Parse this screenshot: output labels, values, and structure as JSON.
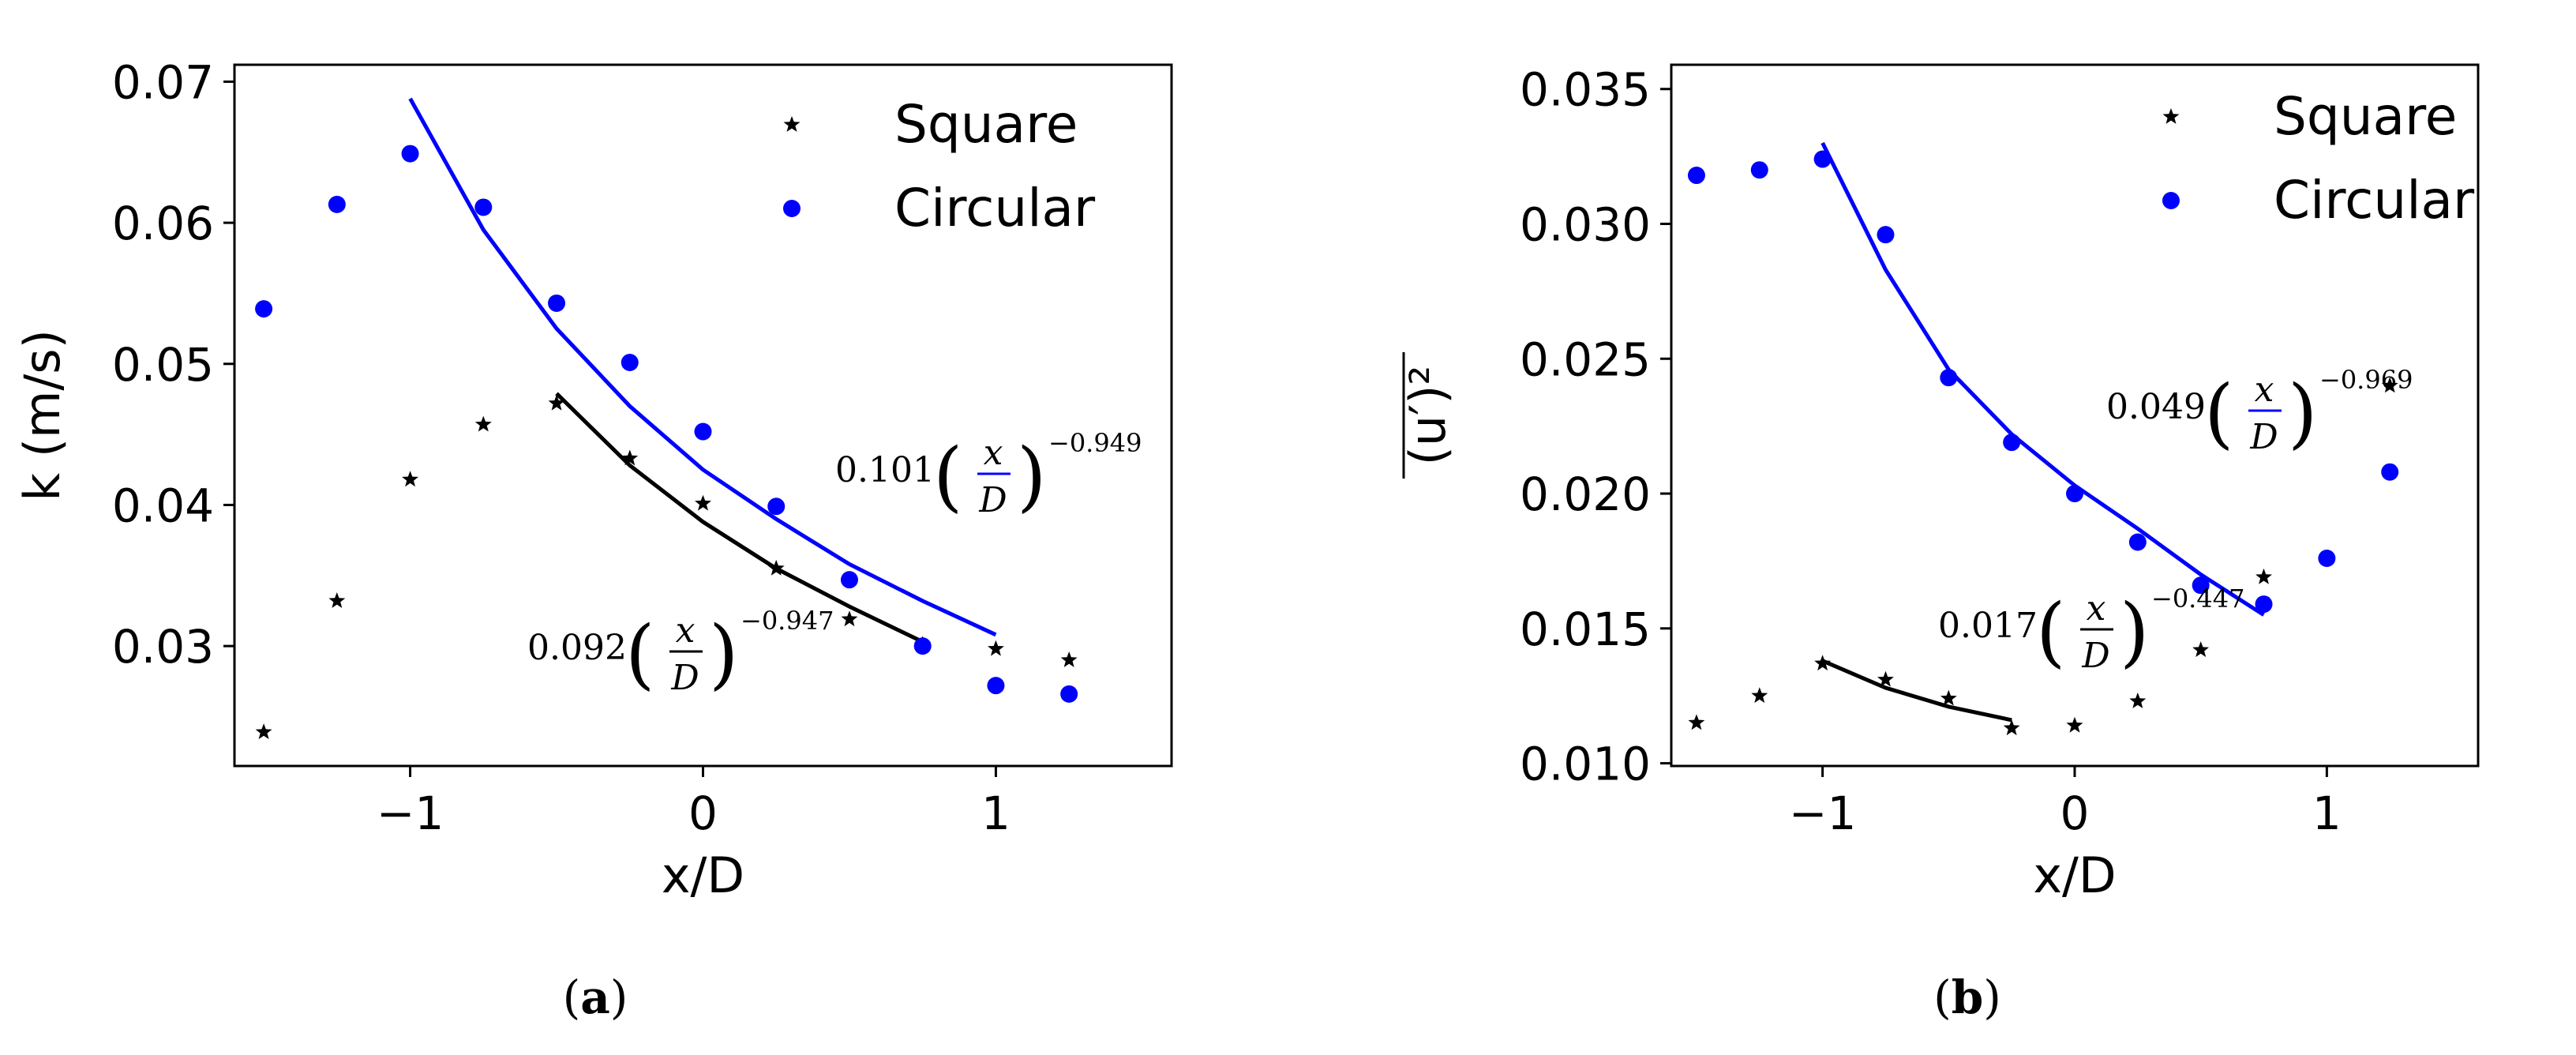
{
  "chart_data": [
    {
      "type": "scatter",
      "panel_label": "a",
      "xlabel": "x/D",
      "ylabel": "k (m/s)",
      "xlim": [
        -1.6,
        1.6
      ],
      "ylim": [
        0.0215,
        0.0712
      ],
      "xticks": [
        -1,
        0,
        1
      ],
      "xtick_labels": [
        "−1",
        "0",
        "1"
      ],
      "yticks": [
        0.03,
        0.04,
        0.05,
        0.06,
        0.07
      ],
      "ytick_labels": [
        "0.03",
        "0.04",
        "0.05",
        "0.06",
        "0.07"
      ],
      "grid": false,
      "legend_position": "top-right",
      "series": [
        {
          "name": "Square",
          "marker": "star",
          "color": "#000000",
          "x": [
            -1.5,
            -1.25,
            -1.0,
            -0.75,
            -0.5,
            -0.25,
            0.0,
            0.25,
            0.5,
            0.75,
            1.0,
            1.25
          ],
          "y": [
            0.0239,
            0.0332,
            0.0418,
            0.0457,
            0.0472,
            0.0433,
            0.0401,
            0.0355,
            0.0319,
            0.0301,
            0.0298,
            0.029
          ]
        },
        {
          "name": "Circular",
          "marker": "circle",
          "color": "#0000ff",
          "x": [
            -1.5,
            -1.25,
            -1.0,
            -0.75,
            -0.5,
            -0.25,
            0.0,
            0.25,
            0.5,
            0.75,
            1.0,
            1.25
          ],
          "y": [
            0.0539,
            0.0613,
            0.0649,
            0.0611,
            0.0543,
            0.0501,
            0.0452,
            0.0399,
            0.0347,
            0.03,
            0.0272,
            0.0266
          ]
        }
      ],
      "fits": [
        {
          "color": "#0000ff",
          "x": [
            -1.0,
            -0.75,
            -0.5,
            -0.25,
            0.0,
            0.25,
            0.5,
            0.75,
            1.0
          ],
          "y": [
            0.0688,
            0.0595,
            0.0525,
            0.047,
            0.0425,
            0.039,
            0.0358,
            0.0332,
            0.0308
          ],
          "coef": "0.101",
          "frac_num": "x",
          "frac_den": "D",
          "exponent": "−0.949"
        },
        {
          "color": "#000000",
          "x": [
            -0.5,
            -0.25,
            0.0,
            0.25,
            0.5,
            0.75
          ],
          "y": [
            0.0479,
            0.0428,
            0.0388,
            0.0355,
            0.0328,
            0.0303
          ],
          "coef": "0.092",
          "frac_num": "x",
          "frac_den": "D",
          "exponent": "−0.947"
        }
      ]
    },
    {
      "type": "scatter",
      "panel_label": "b",
      "xlabel": "x/D",
      "ylabel": "(u′)²",
      "xlim": [
        -1.6,
        1.6
      ],
      "ylim": [
        0.0099,
        0.0359
      ],
      "xticks": [
        -1,
        0,
        1
      ],
      "xtick_labels": [
        "−1",
        "0",
        "1"
      ],
      "yticks": [
        0.01,
        0.015,
        0.02,
        0.025,
        0.03,
        0.035
      ],
      "ytick_labels": [
        "0.010",
        "0.015",
        "0.020",
        "0.025",
        "0.030",
        "0.035"
      ],
      "grid": false,
      "legend_position": "top-right",
      "series": [
        {
          "name": "Square",
          "marker": "star",
          "color": "#000000",
          "x": [
            -1.5,
            -1.25,
            -1.0,
            -0.75,
            -0.5,
            -0.25,
            0.0,
            0.25,
            0.5,
            0.75,
            1.0,
            1.25
          ],
          "y": [
            0.0115,
            0.0125,
            0.0137,
            0.0131,
            0.0124,
            0.0113,
            0.0114,
            0.0123,
            0.0142,
            0.0169,
            null,
            0.024
          ]
        },
        {
          "name": "Circular",
          "marker": "circle",
          "color": "#0000ff",
          "x": [
            -1.5,
            -1.25,
            -1.0,
            -0.75,
            -0.5,
            -0.25,
            0.0,
            0.25,
            0.5,
            0.75,
            1.0,
            1.25
          ],
          "y": [
            0.0318,
            0.032,
            0.0324,
            0.0296,
            0.0243,
            0.0219,
            0.02,
            0.0182,
            0.0166,
            0.0159,
            0.0176,
            0.0208
          ]
        }
      ],
      "fits": [
        {
          "color": "#0000ff",
          "x": [
            -1.0,
            -0.75,
            -0.5,
            -0.25,
            0.0,
            0.25,
            0.5,
            0.75
          ],
          "y": [
            0.033,
            0.0283,
            0.0246,
            0.0222,
            0.0203,
            0.0187,
            0.017,
            0.0155
          ],
          "coef": "0.049",
          "frac_num": "x",
          "frac_den": "D",
          "exponent": "−0.969"
        },
        {
          "color": "#000000",
          "x": [
            -1.0,
            -0.75,
            -0.5,
            -0.25
          ],
          "y": [
            0.0138,
            0.0128,
            0.0121,
            0.0116
          ],
          "coef": "0.017",
          "frac_num": "x",
          "frac_den": "D",
          "exponent": "−0.447"
        }
      ]
    }
  ]
}
